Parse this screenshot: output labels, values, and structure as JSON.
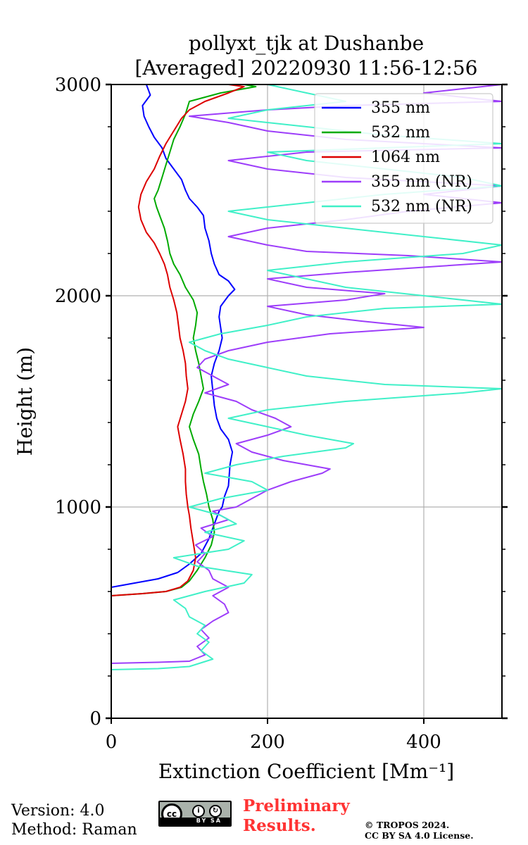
{
  "chart_data": {
    "type": "line",
    "title_line1": "pollyxt_tjk at Dushanbe",
    "title_line2": "[Averaged] 20220930 11:56-12:56",
    "xlabel": "Extinction Coefficient [Mm⁻¹]",
    "ylabel": "Height (m)",
    "xlim": [
      0,
      500
    ],
    "ylim": [
      0,
      3000
    ],
    "xticks": [
      0,
      200,
      400
    ],
    "yticks": [
      0,
      1000,
      2000,
      3000
    ],
    "xtick_labels": [
      "0",
      "200",
      "400"
    ],
    "ytick_labels": [
      "0",
      "1000",
      "2000",
      "3000"
    ],
    "grid": true,
    "legend_position": "top-right",
    "series": [
      {
        "name": "355 nm",
        "color": "#0000ff",
        "points": [
          [
            0,
            620
          ],
          [
            30,
            640
          ],
          [
            60,
            660
          ],
          [
            85,
            690
          ],
          [
            100,
            730
          ],
          [
            115,
            780
          ],
          [
            125,
            850
          ],
          [
            132,
            920
          ],
          [
            138,
            980
          ],
          [
            142,
            1000
          ],
          [
            145,
            1050
          ],
          [
            150,
            1100
          ],
          [
            152,
            1200
          ],
          [
            155,
            1260
          ],
          [
            150,
            1320
          ],
          [
            140,
            1370
          ],
          [
            135,
            1420
          ],
          [
            132,
            1480
          ],
          [
            130,
            1550
          ],
          [
            128,
            1620
          ],
          [
            132,
            1680
          ],
          [
            138,
            1740
          ],
          [
            142,
            1800
          ],
          [
            140,
            1850
          ],
          [
            138,
            1900
          ],
          [
            140,
            1950
          ],
          [
            150,
            2000
          ],
          [
            158,
            2030
          ],
          [
            150,
            2070
          ],
          [
            138,
            2100
          ],
          [
            132,
            2150
          ],
          [
            128,
            2200
          ],
          [
            125,
            2260
          ],
          [
            120,
            2320
          ],
          [
            118,
            2380
          ],
          [
            110,
            2420
          ],
          [
            100,
            2460
          ],
          [
            95,
            2500
          ],
          [
            90,
            2550
          ],
          [
            80,
            2600
          ],
          [
            70,
            2650
          ],
          [
            65,
            2700
          ],
          [
            55,
            2750
          ],
          [
            48,
            2800
          ],
          [
            42,
            2850
          ],
          [
            40,
            2900
          ],
          [
            50,
            2950
          ],
          [
            45,
            3000
          ]
        ]
      },
      {
        "name": "532 nm",
        "color": "#00aa00",
        "points": [
          [
            0,
            580
          ],
          [
            40,
            590
          ],
          [
            70,
            600
          ],
          [
            90,
            620
          ],
          [
            100,
            650
          ],
          [
            110,
            700
          ],
          [
            120,
            760
          ],
          [
            128,
            820
          ],
          [
            132,
            880
          ],
          [
            130,
            940
          ],
          [
            125,
            1000
          ],
          [
            122,
            1060
          ],
          [
            118,
            1120
          ],
          [
            115,
            1180
          ],
          [
            112,
            1250
          ],
          [
            105,
            1320
          ],
          [
            100,
            1380
          ],
          [
            105,
            1440
          ],
          [
            112,
            1500
          ],
          [
            118,
            1560
          ],
          [
            115,
            1620
          ],
          [
            112,
            1680
          ],
          [
            108,
            1740
          ],
          [
            105,
            1800
          ],
          [
            108,
            1860
          ],
          [
            110,
            1920
          ],
          [
            105,
            1980
          ],
          [
            95,
            2040
          ],
          [
            88,
            2100
          ],
          [
            80,
            2150
          ],
          [
            75,
            2200
          ],
          [
            72,
            2260
          ],
          [
            68,
            2320
          ],
          [
            62,
            2380
          ],
          [
            58,
            2420
          ],
          [
            55,
            2460
          ],
          [
            60,
            2500
          ],
          [
            65,
            2560
          ],
          [
            70,
            2620
          ],
          [
            75,
            2680
          ],
          [
            80,
            2740
          ],
          [
            88,
            2800
          ],
          [
            95,
            2860
          ],
          [
            100,
            2920
          ],
          [
            140,
            2960
          ],
          [
            185,
            2990
          ],
          [
            170,
            3000
          ]
        ]
      },
      {
        "name": "1064 nm",
        "color": "#dd0000",
        "points": [
          [
            0,
            580
          ],
          [
            40,
            590
          ],
          [
            70,
            600
          ],
          [
            88,
            620
          ],
          [
            98,
            650
          ],
          [
            105,
            700
          ],
          [
            108,
            760
          ],
          [
            105,
            830
          ],
          [
            102,
            900
          ],
          [
            100,
            960
          ],
          [
            98,
            1000
          ],
          [
            96,
            1060
          ],
          [
            95,
            1120
          ],
          [
            95,
            1180
          ],
          [
            92,
            1250
          ],
          [
            88,
            1320
          ],
          [
            85,
            1380
          ],
          [
            90,
            1440
          ],
          [
            95,
            1500
          ],
          [
            98,
            1560
          ],
          [
            96,
            1620
          ],
          [
            95,
            1680
          ],
          [
            92,
            1740
          ],
          [
            88,
            1800
          ],
          [
            86,
            1860
          ],
          [
            84,
            1920
          ],
          [
            80,
            1980
          ],
          [
            75,
            2040
          ],
          [
            72,
            2100
          ],
          [
            68,
            2150
          ],
          [
            62,
            2200
          ],
          [
            55,
            2250
          ],
          [
            45,
            2300
          ],
          [
            38,
            2360
          ],
          [
            35,
            2420
          ],
          [
            38,
            2480
          ],
          [
            45,
            2540
          ],
          [
            55,
            2600
          ],
          [
            62,
            2660
          ],
          [
            70,
            2720
          ],
          [
            80,
            2780
          ],
          [
            90,
            2840
          ],
          [
            100,
            2880
          ],
          [
            120,
            2920
          ],
          [
            150,
            2960
          ],
          [
            170,
            2990
          ],
          [
            150,
            3000
          ]
        ]
      },
      {
        "name": "355 nm (NR)",
        "color": "#9d3dfa",
        "points": [
          [
            0,
            260
          ],
          [
            60,
            265
          ],
          [
            100,
            270
          ],
          [
            120,
            300
          ],
          [
            110,
            340
          ],
          [
            125,
            380
          ],
          [
            115,
            420
          ],
          [
            130,
            460
          ],
          [
            150,
            500
          ],
          [
            145,
            540
          ],
          [
            130,
            580
          ],
          [
            150,
            620
          ],
          [
            130,
            660
          ],
          [
            125,
            700
          ],
          [
            110,
            740
          ],
          [
            120,
            780
          ],
          [
            108,
            820
          ],
          [
            130,
            860
          ],
          [
            115,
            900
          ],
          [
            150,
            940
          ],
          [
            130,
            980
          ],
          [
            160,
            1000
          ],
          [
            180,
            1040
          ],
          [
            200,
            1080
          ],
          [
            230,
            1120
          ],
          [
            270,
            1160
          ],
          [
            280,
            1180
          ],
          [
            220,
            1220
          ],
          [
            180,
            1260
          ],
          [
            160,
            1300
          ],
          [
            200,
            1340
          ],
          [
            230,
            1380
          ],
          [
            210,
            1420
          ],
          [
            180,
            1460
          ],
          [
            160,
            1500
          ],
          [
            120,
            1540
          ],
          [
            150,
            1580
          ],
          [
            130,
            1620
          ],
          [
            110,
            1660
          ],
          [
            120,
            1700
          ],
          [
            150,
            1740
          ],
          [
            200,
            1780
          ],
          [
            280,
            1820
          ],
          [
            400,
            1850
          ],
          [
            320,
            1880
          ],
          [
            250,
            1910
          ],
          [
            200,
            1950
          ],
          [
            300,
            1980
          ],
          [
            350,
            2010
          ],
          [
            250,
            2040
          ],
          [
            200,
            2080
          ],
          [
            300,
            2110
          ],
          [
            420,
            2140
          ],
          [
            500,
            2160
          ],
          [
            380,
            2190
          ],
          [
            250,
            2210
          ],
          [
            200,
            2240
          ],
          [
            150,
            2280
          ],
          [
            200,
            2320
          ],
          [
            300,
            2360
          ],
          [
            380,
            2400
          ],
          [
            500,
            2440
          ],
          [
            400,
            2480
          ],
          [
            500,
            2520
          ],
          [
            300,
            2560
          ],
          [
            200,
            2600
          ],
          [
            150,
            2640
          ],
          [
            250,
            2680
          ],
          [
            500,
            2700
          ],
          [
            300,
            2740
          ],
          [
            200,
            2780
          ],
          [
            150,
            2820
          ],
          [
            100,
            2850
          ],
          [
            200,
            2880
          ],
          [
            300,
            2900
          ],
          [
            500,
            2920
          ],
          [
            400,
            2960
          ],
          [
            500,
            3000
          ]
        ]
      },
      {
        "name": "532 nm (NR)",
        "color": "#40f0c8",
        "points": [
          [
            0,
            230
          ],
          [
            60,
            235
          ],
          [
            100,
            245
          ],
          [
            130,
            280
          ],
          [
            115,
            320
          ],
          [
            125,
            360
          ],
          [
            110,
            400
          ],
          [
            120,
            440
          ],
          [
            100,
            480
          ],
          [
            95,
            520
          ],
          [
            80,
            560
          ],
          [
            120,
            600
          ],
          [
            170,
            640
          ],
          [
            180,
            680
          ],
          [
            110,
            720
          ],
          [
            80,
            760
          ],
          [
            150,
            800
          ],
          [
            170,
            840
          ],
          [
            120,
            880
          ],
          [
            160,
            920
          ],
          [
            140,
            960
          ],
          [
            100,
            1000
          ],
          [
            140,
            1040
          ],
          [
            200,
            1080
          ],
          [
            180,
            1120
          ],
          [
            120,
            1160
          ],
          [
            160,
            1200
          ],
          [
            220,
            1240
          ],
          [
            300,
            1280
          ],
          [
            310,
            1300
          ],
          [
            250,
            1340
          ],
          [
            200,
            1380
          ],
          [
            150,
            1420
          ],
          [
            200,
            1460
          ],
          [
            300,
            1500
          ],
          [
            450,
            1540
          ],
          [
            500,
            1560
          ],
          [
            350,
            1580
          ],
          [
            250,
            1620
          ],
          [
            200,
            1660
          ],
          [
            150,
            1700
          ],
          [
            120,
            1740
          ],
          [
            100,
            1780
          ],
          [
            140,
            1820
          ],
          [
            200,
            1860
          ],
          [
            250,
            1900
          ],
          [
            350,
            1940
          ],
          [
            500,
            1960
          ],
          [
            400,
            2000
          ],
          [
            300,
            2040
          ],
          [
            250,
            2080
          ],
          [
            200,
            2120
          ],
          [
            300,
            2160
          ],
          [
            450,
            2200
          ],
          [
            500,
            2240
          ],
          [
            400,
            2280
          ],
          [
            300,
            2320
          ],
          [
            200,
            2360
          ],
          [
            150,
            2400
          ],
          [
            250,
            2440
          ],
          [
            350,
            2480
          ],
          [
            500,
            2520
          ],
          [
            450,
            2560
          ],
          [
            350,
            2600
          ],
          [
            250,
            2640
          ],
          [
            200,
            2680
          ],
          [
            500,
            2720
          ],
          [
            350,
            2760
          ],
          [
            250,
            2800
          ],
          [
            150,
            2840
          ],
          [
            200,
            2880
          ],
          [
            300,
            2920
          ],
          [
            250,
            2960
          ],
          [
            200,
            3000
          ]
        ]
      }
    ]
  },
  "footer": {
    "version": "Version: 4.0",
    "method": "Method: Raman",
    "preliminary_line1": "Preliminary",
    "preliminary_line2": "Results.",
    "copyright_line1": "© TROPOS 2024.",
    "copyright_line2": "CC BY SA 4.0 License.",
    "license_badge": {
      "icon": "cc-by-sa-icon",
      "cc_text": "cc",
      "by_text": "BY",
      "sa_text": "SA"
    }
  }
}
